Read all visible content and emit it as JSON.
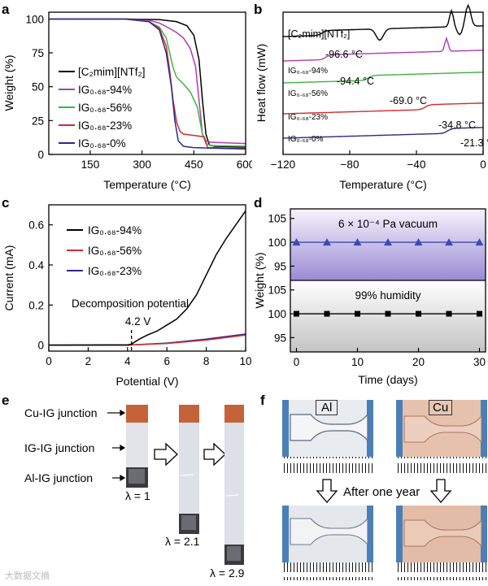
{
  "panels": {
    "a": "a",
    "b": "b",
    "c": "c",
    "d": "d",
    "e": "e",
    "f": "f"
  },
  "colors": {
    "black": "#000000",
    "magenta": "#b03cb0",
    "green": "#3fb43f",
    "red": "#d42a2a",
    "navy": "#2a2a8c",
    "blue_marker": "#3c4ab8"
  },
  "chart_data": [
    {
      "id": "a",
      "type": "line",
      "xlabel": "Temperature (°C)",
      "ylabel": "Weight (%)",
      "xlim": [
        30,
        600
      ],
      "ylim": [
        0,
        105
      ],
      "xticks": [
        150,
        300,
        450,
        600
      ],
      "yticks": [
        0,
        25,
        50,
        75,
        100
      ],
      "series": [
        {
          "name": "[C2mim][NTf2]",
          "color": "#000000",
          "points": [
            [
              30,
              100
            ],
            [
              250,
              100
            ],
            [
              350,
              99.5
            ],
            [
              400,
              98
            ],
            [
              430,
              95
            ],
            [
              450,
              88
            ],
            [
              465,
              70
            ],
            [
              475,
              40
            ],
            [
              485,
              15
            ],
            [
              495,
              7
            ],
            [
              510,
              6
            ],
            [
              600,
              5.5
            ]
          ]
        },
        {
          "name": "IG0.68-94%",
          "color": "#b03cb0",
          "points": [
            [
              30,
              100
            ],
            [
              250,
              100
            ],
            [
              320,
              99
            ],
            [
              350,
              97
            ],
            [
              380,
              93
            ],
            [
              400,
              90
            ],
            [
              420,
              86
            ],
            [
              440,
              78
            ],
            [
              455,
              65
            ],
            [
              465,
              40
            ],
            [
              475,
              15
            ],
            [
              485,
              10
            ],
            [
              500,
              9
            ],
            [
              600,
              8
            ]
          ]
        },
        {
          "name": "IG0.68-56%",
          "color": "#3fb43f",
          "points": [
            [
              30,
              100
            ],
            [
              250,
              100
            ],
            [
              320,
              98
            ],
            [
              350,
              94
            ],
            [
              370,
              86
            ],
            [
              380,
              75
            ],
            [
              390,
              64
            ],
            [
              400,
              57
            ],
            [
              420,
              52
            ],
            [
              440,
              46
            ],
            [
              460,
              35
            ],
            [
              475,
              15
            ],
            [
              485,
              8
            ],
            [
              500,
              6.5
            ],
            [
              600,
              6
            ]
          ]
        },
        {
          "name": "IG0.68-23%",
          "color": "#d42a2a",
          "points": [
            [
              30,
              100
            ],
            [
              250,
              100
            ],
            [
              320,
              98
            ],
            [
              350,
              93
            ],
            [
              370,
              80
            ],
            [
              380,
              62
            ],
            [
              390,
              40
            ],
            [
              400,
              24
            ],
            [
              410,
              17
            ],
            [
              420,
              15
            ],
            [
              450,
              14
            ],
            [
              480,
              13
            ],
            [
              490,
              5
            ],
            [
              600,
              4.5
            ]
          ]
        },
        {
          "name": "IG0.68-0%",
          "color": "#2a2a8c",
          "points": [
            [
              30,
              100
            ],
            [
              250,
              100
            ],
            [
              320,
              98
            ],
            [
              350,
              92
            ],
            [
              370,
              75
            ],
            [
              385,
              50
            ],
            [
              395,
              25
            ],
            [
              405,
              10
            ],
            [
              420,
              6
            ],
            [
              450,
              5
            ],
            [
              600,
              4
            ]
          ]
        }
      ],
      "legend_labels": [
        "[C₂mim][NTf₂]",
        "IG₀.₆₈-94%",
        "IG₀.₆₈-56%",
        "IG₀.₆₈-23%",
        "IG₀.₆₈-0%"
      ]
    },
    {
      "id": "b",
      "type": "line",
      "xlabel": "Temperature (°C)",
      "ylabel": "Heat flow (mW)",
      "xlim": [
        -120,
        0
      ],
      "xticks": [
        -120,
        -80,
        -40,
        0
      ],
      "traces": [
        {
          "name": "[C2mim][NTf2]",
          "color": "#000000",
          "label": "[C₂mim][NTf₂]",
          "tg": "-96.6 °C"
        },
        {
          "name": "IG0.68-94%",
          "color": "#b03cb0",
          "label": "IG₀.₆₈-94%",
          "tg": "-94.4 °C"
        },
        {
          "name": "IG0.68-56%",
          "color": "#3fb43f",
          "label": "IG₀.₆₈-56%",
          "tg": "-69.0 °C"
        },
        {
          "name": "IG0.68-23%",
          "color": "#d42a2a",
          "label": "IG₀.₆₈-23%",
          "tg": "-34.8 °C"
        },
        {
          "name": "IG0.68-0%",
          "color": "#2a2a8c",
          "label": "IG₀.₆₈-0%",
          "tg": "-21.3 °C"
        }
      ]
    },
    {
      "id": "c",
      "type": "line",
      "xlabel": "Potential (V)",
      "ylabel": "Current (mA)",
      "xlim": [
        0,
        10
      ],
      "ylim": [
        -0.03,
        0.7
      ],
      "xticks": [
        0,
        2,
        4,
        6,
        8,
        10
      ],
      "yticks": [
        0,
        0.2,
        0.4,
        0.6
      ],
      "annotation": "Decomposition potential",
      "marker_label": "4.2 V",
      "marker_x": 4.2,
      "series": [
        {
          "name": "IG0.68-94%",
          "color": "#000000",
          "points": [
            [
              0,
              0
            ],
            [
              4.0,
              0.001
            ],
            [
              4.2,
              0.005
            ],
            [
              4.6,
              0.03
            ],
            [
              5,
              0.05
            ],
            [
              5.5,
              0.07
            ],
            [
              6,
              0.1
            ],
            [
              6.5,
              0.13
            ],
            [
              7,
              0.18
            ],
            [
              7.5,
              0.25
            ],
            [
              8,
              0.35
            ],
            [
              8.5,
              0.45
            ],
            [
              9,
              0.53
            ],
            [
              9.5,
              0.6
            ],
            [
              10,
              0.67
            ]
          ]
        },
        {
          "name": "IG0.68-56%",
          "color": "#d42a2a",
          "points": [
            [
              0,
              0
            ],
            [
              4,
              0
            ],
            [
              6,
              0.008
            ],
            [
              8,
              0.025
            ],
            [
              10,
              0.05
            ]
          ]
        },
        {
          "name": "IG0.68-23%",
          "color": "#2a2a8c",
          "points": [
            [
              0,
              0
            ],
            [
              4,
              0
            ],
            [
              6,
              0.01
            ],
            [
              8,
              0.03
            ],
            [
              10,
              0.055
            ]
          ]
        }
      ],
      "legend_labels": [
        "IG₀.₆₈-94%",
        "IG₀.₆₈-56%",
        "IG₀.₆₈-23%"
      ]
    },
    {
      "id": "d",
      "type": "scatter",
      "xlabel": "Time (days)",
      "ylabel": "Weight (%)",
      "xlim": [
        -1,
        31
      ],
      "xticks": [
        0,
        10,
        20,
        30
      ],
      "top": {
        "title": "6 × 10⁻⁴ Pa vacuum",
        "ylim": [
          92,
          107
        ],
        "yticks": [
          95,
          100,
          105
        ],
        "x": [
          0,
          5,
          10,
          15,
          20,
          25,
          30
        ],
        "y": [
          100,
          100,
          100,
          100,
          100,
          100,
          100
        ],
        "color": "#3c4ab8",
        "marker": "triangle"
      },
      "bottom": {
        "title": "99% humidity",
        "ylim": [
          92,
          107
        ],
        "yticks": [
          95,
          100,
          105
        ],
        "x": [
          0,
          5,
          10,
          15,
          20,
          25,
          30
        ],
        "y": [
          100,
          100,
          100,
          100,
          100,
          100,
          100
        ],
        "color": "#000000",
        "marker": "square"
      }
    }
  ],
  "photo_e": {
    "labels": [
      "Cu-IG junction",
      "IG-IG junction",
      "Al-IG junction"
    ],
    "lambdas": [
      "λ = 1",
      "λ = 2.1",
      "λ = 2.9"
    ]
  },
  "photo_f": {
    "al": "Al",
    "cu": "Cu",
    "after": "After one year"
  },
  "watermark": "大数据文摘"
}
